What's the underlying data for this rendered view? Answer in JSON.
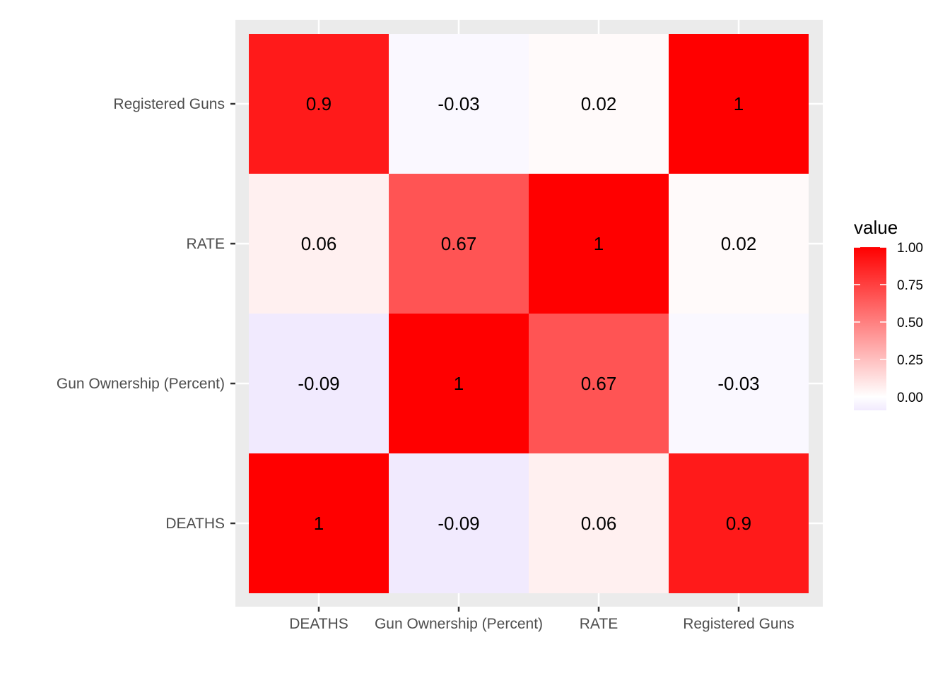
{
  "chart_data": {
    "type": "heatmap",
    "x_categories": [
      "DEATHS",
      "Gun Ownership (Percent)",
      "RATE",
      "Registered Guns"
    ],
    "y_categories": [
      "DEATHS",
      "Gun Ownership (Percent)",
      "RATE",
      "Registered Guns"
    ],
    "values": [
      [
        1,
        -0.09,
        0.06,
        0.9
      ],
      [
        -0.09,
        1,
        0.67,
        -0.03
      ],
      [
        0.06,
        0.67,
        1,
        0.02
      ],
      [
        0.9,
        -0.03,
        0.02,
        1
      ]
    ],
    "cell_labels": [
      [
        "1",
        "-0.09",
        "0.06",
        "0.9"
      ],
      [
        "-0.09",
        "1",
        "0.67",
        "-0.03"
      ],
      [
        "0.06",
        "0.67",
        "1",
        "0.02"
      ],
      [
        "0.9",
        "-0.03",
        "0.02",
        "1"
      ]
    ],
    "color_scale": {
      "low": "#f1eafe",
      "mid": "#ffffff",
      "high": "#ff0000",
      "min": -0.09,
      "max": 1
    },
    "legend": {
      "title": "value",
      "ticks": [
        1.0,
        0.75,
        0.5,
        0.25,
        0.0
      ],
      "tick_labels": [
        "1.00",
        "0.75",
        "0.50",
        "0.25",
        "0.00"
      ],
      "placement": "right"
    },
    "panel_background": "#ebebeb",
    "gridlines": true
  }
}
